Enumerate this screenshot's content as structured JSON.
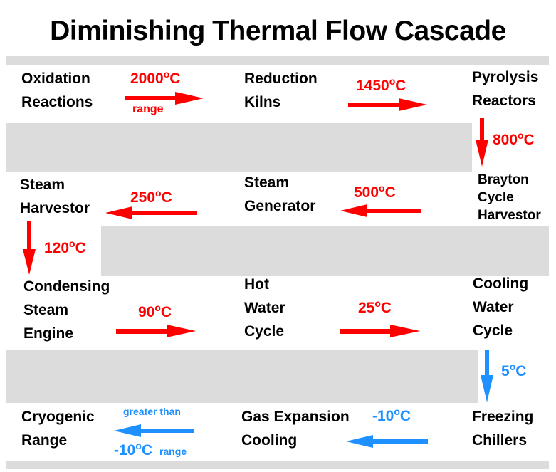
{
  "title": "Diminishing Thermal Flow Cascade",
  "colors": {
    "hot": "#ff0000",
    "cold": "#1e90ff",
    "band": "#dcdcdc"
  },
  "stages": {
    "oxidation": [
      "Oxidation",
      "Reactions"
    ],
    "reduction": [
      "Reduction",
      "Kilns"
    ],
    "pyrolysis": [
      "Pyrolysis",
      "Reactors"
    ],
    "brayton": [
      "Brayton",
      "Cycle",
      "Harvestor"
    ],
    "steam_generator": [
      "Steam",
      "Generator"
    ],
    "steam_harvestor": [
      "Steam",
      "Harvestor"
    ],
    "condensing": [
      "Condensing",
      "Steam",
      "Engine"
    ],
    "hot_water": [
      "Hot",
      "Water",
      "Cycle"
    ],
    "cooling_water": [
      "Cooling",
      "Water",
      "Cycle"
    ],
    "freezing": [
      "Freezing",
      "Chillers"
    ],
    "gas_expansion": [
      "Gas Expansion",
      "Cooling"
    ],
    "cryogenic": [
      "Cryogenic",
      "Range"
    ]
  },
  "flows": {
    "t2000": {
      "value": "2000",
      "unit": "C",
      "note": "range"
    },
    "t1450": {
      "value": "1450",
      "unit": "C"
    },
    "t800": {
      "value": "800",
      "unit": "C"
    },
    "t500": {
      "value": "500",
      "unit": "C"
    },
    "t250": {
      "value": "250",
      "unit": "C"
    },
    "t120": {
      "value": "120",
      "unit": "C"
    },
    "t90": {
      "value": "90",
      "unit": "C"
    },
    "t25": {
      "value": "25",
      "unit": "C"
    },
    "t5": {
      "value": "5",
      "unit": "C"
    },
    "tneg10": {
      "value": "-10",
      "unit": "C"
    },
    "tcryo": {
      "value": "-10",
      "unit": "C",
      "note_above": "greater than",
      "note": "range"
    }
  }
}
